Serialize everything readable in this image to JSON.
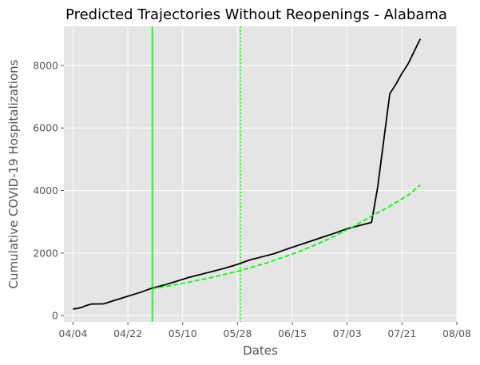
{
  "chart_data": {
    "type": "line",
    "title": "Predicted Trajectories Without Reopenings - Alabama",
    "xlabel": "Dates",
    "ylabel": "Cumulative COVID-19 Hospitalizations",
    "x_axis": {
      "type": "date",
      "year": 2020,
      "range": [
        "2020-04-01",
        "2020-08-08"
      ],
      "ticks": [
        "2020-04-04",
        "2020-04-22",
        "2020-05-10",
        "2020-05-28",
        "2020-06-15",
        "2020-07-03",
        "2020-07-21",
        "2020-08-08"
      ],
      "tick_labels": [
        "04/04",
        "04/22",
        "05/10",
        "05/28",
        "06/15",
        "07/03",
        "07/21",
        "08/08"
      ]
    },
    "y_axis": {
      "range": [
        -200,
        9250
      ],
      "ticks": [
        0,
        2000,
        4000,
        6000,
        8000
      ],
      "tick_labels": [
        "0",
        "2000",
        "4000",
        "6000",
        "8000"
      ]
    },
    "grid": true,
    "background": "#e5e5e5",
    "grid_color": "#ffffff",
    "series": [
      {
        "color": "#000000",
        "style": "solid",
        "points": [
          [
            "2020-04-04",
            210
          ],
          [
            "2020-04-06",
            240
          ],
          [
            "2020-04-07",
            270
          ],
          [
            "2020-04-08",
            310
          ],
          [
            "2020-04-10",
            370
          ],
          [
            "2020-04-14",
            375
          ],
          [
            "2020-04-18",
            500
          ],
          [
            "2020-04-22",
            620
          ],
          [
            "2020-04-26",
            740
          ],
          [
            "2020-04-30",
            880
          ],
          [
            "2020-05-04",
            980
          ],
          [
            "2020-05-08",
            1100
          ],
          [
            "2020-05-12",
            1220
          ],
          [
            "2020-05-16",
            1320
          ],
          [
            "2020-05-20",
            1420
          ],
          [
            "2020-05-24",
            1520
          ],
          [
            "2020-05-28",
            1640
          ],
          [
            "2020-06-01",
            1780
          ],
          [
            "2020-06-05",
            1880
          ],
          [
            "2020-06-09",
            1980
          ],
          [
            "2020-06-13",
            2120
          ],
          [
            "2020-06-17",
            2250
          ],
          [
            "2020-06-21",
            2380
          ],
          [
            "2020-06-25",
            2510
          ],
          [
            "2020-06-29",
            2640
          ],
          [
            "2020-07-03",
            2780
          ],
          [
            "2020-07-07",
            2880
          ],
          [
            "2020-07-11",
            2980
          ],
          [
            "2020-07-13",
            4100
          ],
          [
            "2020-07-15",
            5600
          ],
          [
            "2020-07-17",
            7100
          ],
          [
            "2020-07-19",
            7400
          ],
          [
            "2020-07-21",
            7750
          ],
          [
            "2020-07-23",
            8050
          ],
          [
            "2020-07-25",
            8450
          ],
          [
            "2020-07-27",
            8850
          ]
        ]
      },
      {
        "color": "#00ff00",
        "style": "dashed",
        "points": [
          [
            "2020-04-30",
            860
          ],
          [
            "2020-05-06",
            960
          ],
          [
            "2020-05-12",
            1070
          ],
          [
            "2020-05-18",
            1190
          ],
          [
            "2020-05-24",
            1320
          ],
          [
            "2020-05-30",
            1470
          ],
          [
            "2020-06-05",
            1640
          ],
          [
            "2020-06-11",
            1830
          ],
          [
            "2020-06-17",
            2040
          ],
          [
            "2020-06-23",
            2280
          ],
          [
            "2020-06-29",
            2550
          ],
          [
            "2020-07-05",
            2850
          ],
          [
            "2020-07-11",
            3180
          ],
          [
            "2020-07-17",
            3500
          ],
          [
            "2020-07-23",
            3850
          ],
          [
            "2020-07-27",
            4180
          ]
        ]
      }
    ],
    "vlines": [
      {
        "x": "2020-04-30",
        "color": "#00ff00",
        "style": "solid"
      },
      {
        "x": "2020-05-29",
        "color": "#00ff00",
        "style": "dotted"
      }
    ]
  }
}
